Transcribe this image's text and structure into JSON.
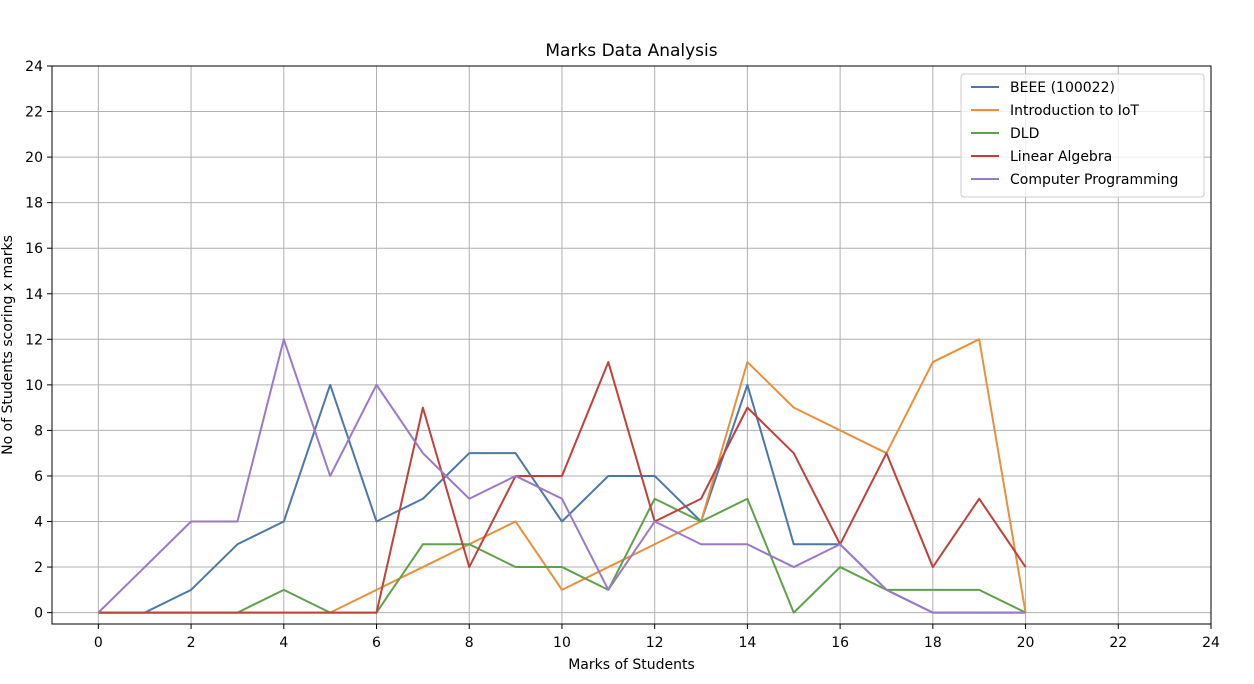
{
  "chart_data": {
    "type": "line",
    "title": "Marks Data Analysis",
    "xlabel": "Marks of Students",
    "ylabel": "No of Students scoring x marks",
    "xlim": [
      -1,
      24
    ],
    "ylim": [
      -0.5,
      24
    ],
    "xticks": [
      0,
      2,
      4,
      6,
      8,
      10,
      12,
      14,
      16,
      18,
      20,
      22,
      24
    ],
    "yticks": [
      0,
      2,
      4,
      6,
      8,
      10,
      12,
      14,
      16,
      18,
      20,
      22,
      24
    ],
    "grid": true,
    "legend_position": "top-right",
    "x": [
      0,
      1,
      2,
      3,
      4,
      5,
      6,
      7,
      8,
      9,
      10,
      11,
      12,
      13,
      14,
      15,
      16,
      17,
      18,
      19,
      20
    ],
    "series": [
      {
        "name": "BEEE (100022)",
        "color": "#4c78a8",
        "values": [
          0,
          0,
          1,
          3,
          4,
          10,
          4,
          5,
          7,
          7,
          4,
          6,
          6,
          4,
          10,
          3,
          3,
          1,
          0,
          0,
          0
        ]
      },
      {
        "name": "Introduction to IoT",
        "color": "#e8903c",
        "values": [
          0,
          0,
          0,
          0,
          0,
          0,
          1,
          2,
          3,
          4,
          1,
          2,
          3,
          4,
          11,
          9,
          8,
          7,
          11,
          12,
          0
        ]
      },
      {
        "name": "DLD",
        "color": "#5ea14a",
        "values": [
          0,
          0,
          0,
          0,
          1,
          0,
          0,
          3,
          3,
          2,
          2,
          1,
          5,
          4,
          5,
          0,
          2,
          1,
          1,
          1,
          0
        ]
      },
      {
        "name": "Linear Algebra",
        "color": "#c0413b",
        "values": [
          0,
          0,
          0,
          0,
          0,
          0,
          0,
          9,
          2,
          6,
          6,
          11,
          4,
          5,
          9,
          7,
          3,
          7,
          2,
          5,
          2
        ]
      },
      {
        "name": "Computer Programming",
        "color": "#9b79c6",
        "values": [
          0,
          2,
          4,
          4,
          12,
          6,
          10,
          7,
          5,
          6,
          5,
          1,
          4,
          3,
          3,
          2,
          3,
          1,
          0,
          0,
          0
        ]
      }
    ]
  }
}
